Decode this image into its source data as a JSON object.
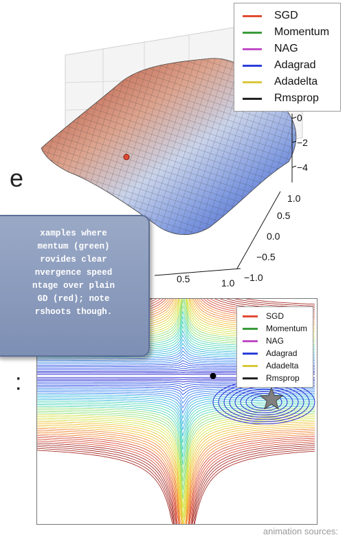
{
  "legend_top": {
    "items": [
      {
        "label": "SGD",
        "color": "#e24a33"
      },
      {
        "label": "Momentum",
        "color": "#3a9a3a"
      },
      {
        "label": "NAG",
        "color": "#c04cc8"
      },
      {
        "label": "Adagrad",
        "color": "#2a3fd8"
      },
      {
        "label": "Adadelta",
        "color": "#d8c83a"
      },
      {
        "label": "Rmsprop",
        "color": "#222222"
      }
    ]
  },
  "legend_bottom": {
    "items": [
      {
        "label": "SGD",
        "color": "#e24a33"
      },
      {
        "label": "Momentum",
        "color": "#3a9a3a"
      },
      {
        "label": "NAG",
        "color": "#c04cc8"
      },
      {
        "label": "Adagrad",
        "color": "#2a3fd8"
      },
      {
        "label": "Adadelta",
        "color": "#d8c83a"
      },
      {
        "label": "Rmsprop",
        "color": "#222222"
      }
    ]
  },
  "plot3d": {
    "z_ticks": [
      "0",
      "−2",
      "−4"
    ],
    "y_ticks": [
      "1.0",
      "0.5",
      "0.0",
      "−0.5",
      "−1.0"
    ],
    "x_ticks": [
      "0.5",
      "1.0"
    ]
  },
  "slide_fragments": {
    "letter_e": "e",
    "colon": ":"
  },
  "tooltip": {
    "text": "xamples where\nmentum (green)\nrovides clear\nnvergence speed\nntage over plain\nGD (red); note\nrshoots though."
  },
  "footer": {
    "text": "animation sources:"
  },
  "colors": {
    "tooltip_bg": "#8a9bbd",
    "surface_warm": "#c8654a",
    "surface_cool": "#5b7ad1",
    "star": "#808080"
  }
}
